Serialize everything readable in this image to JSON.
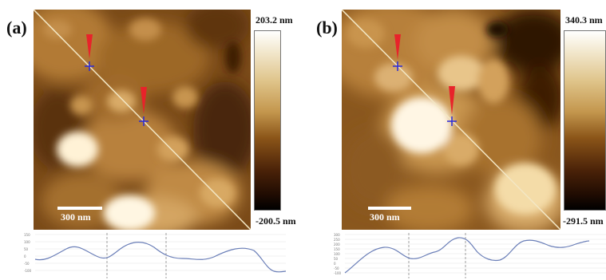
{
  "panel_a": {
    "label": "(a)",
    "colorbar_max": "203.2 nm",
    "colorbar_min": "-200.5 nm",
    "scale_bar": "300 nm",
    "profile_y_ticks": [
      "150",
      "100",
      "50",
      "0",
      "-50",
      "-100"
    ]
  },
  "panel_b": {
    "label": "(b)",
    "colorbar_max": "340.3 nm",
    "colorbar_min": "-291.5 nm",
    "scale_bar": "300 nm",
    "profile_y_ticks": [
      "300",
      "250",
      "200",
      "150",
      "100",
      "50",
      "0",
      "-50",
      "-100"
    ]
  },
  "colors": {
    "afm_dark": "#3a1c05",
    "afm_mid": "#9a6325",
    "afm_light": "#fff3d8",
    "marker": "#e8232a",
    "cross": "#2b2bd9",
    "profile_line": "#6b7fb8"
  }
}
